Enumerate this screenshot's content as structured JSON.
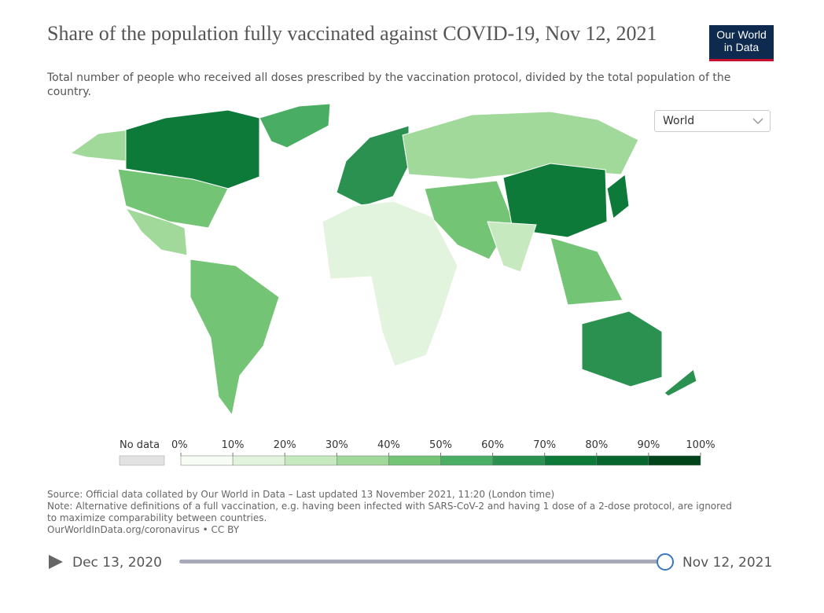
{
  "header": {
    "title": "Share of the population fully vaccinated against COVID-19, Nov 12, 2021",
    "subtitle": "Total number of people who received all doses prescribed by the vaccination protocol, divided by the total population of the country.",
    "logo": [
      "Our World",
      "in Data"
    ]
  },
  "controls": {
    "region": "World"
  },
  "legend": {
    "no_data": "No data",
    "no_data_color": "#e2e2e2",
    "ticks": [
      "0%",
      "10%",
      "20%",
      "30%",
      "40%",
      "50%",
      "60%",
      "70%",
      "80%",
      "90%",
      "100%"
    ],
    "colors": [
      "#f7fcf5",
      "#e3f4de",
      "#c7e9c0",
      "#a1d99b",
      "#74c476",
      "#49ae63",
      "#2a9150",
      "#0e7a3a",
      "#08662f",
      "#00441b"
    ]
  },
  "footer": {
    "source": "Source: Official data collated by Our World in Data – Last updated 13 November 2021, 11:20 (London time)",
    "note": "Note: Alternative definitions of a full vaccination, e.g. having been infected with SARS-CoV-2 and having 1 dose of a 2-dose protocol, are ignored to maximize comparability between countries.",
    "license": "OurWorldInData.org/coronavirus • CC BY"
  },
  "timeline": {
    "start": "Dec 13, 2020",
    "end": "Nov 12, 2021"
  }
}
